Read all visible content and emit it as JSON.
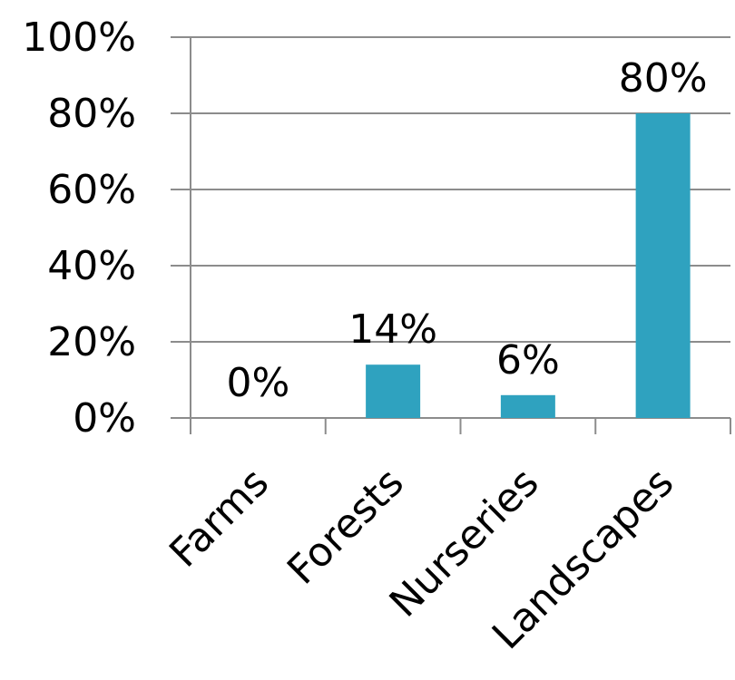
{
  "chart_data": {
    "type": "bar",
    "categories": [
      "Farms",
      "Forests",
      "Nurseries",
      "Landscapes"
    ],
    "values": [
      0,
      14,
      6,
      80
    ],
    "data_labels": [
      "0%",
      "14%",
      "6%",
      "80%"
    ],
    "title": "",
    "xlabel": "",
    "ylabel": "",
    "ylim": [
      0,
      100
    ],
    "y_ticks": [
      0,
      20,
      40,
      60,
      80,
      100
    ],
    "y_tick_labels": [
      "0%",
      "20%",
      "40%",
      "60%",
      "80%",
      "100%"
    ],
    "grid": true,
    "legend": "none",
    "bar_color": "#2fa2bf",
    "grid_color": "#8c8c8c",
    "axis_color": "#8c8c8c"
  }
}
